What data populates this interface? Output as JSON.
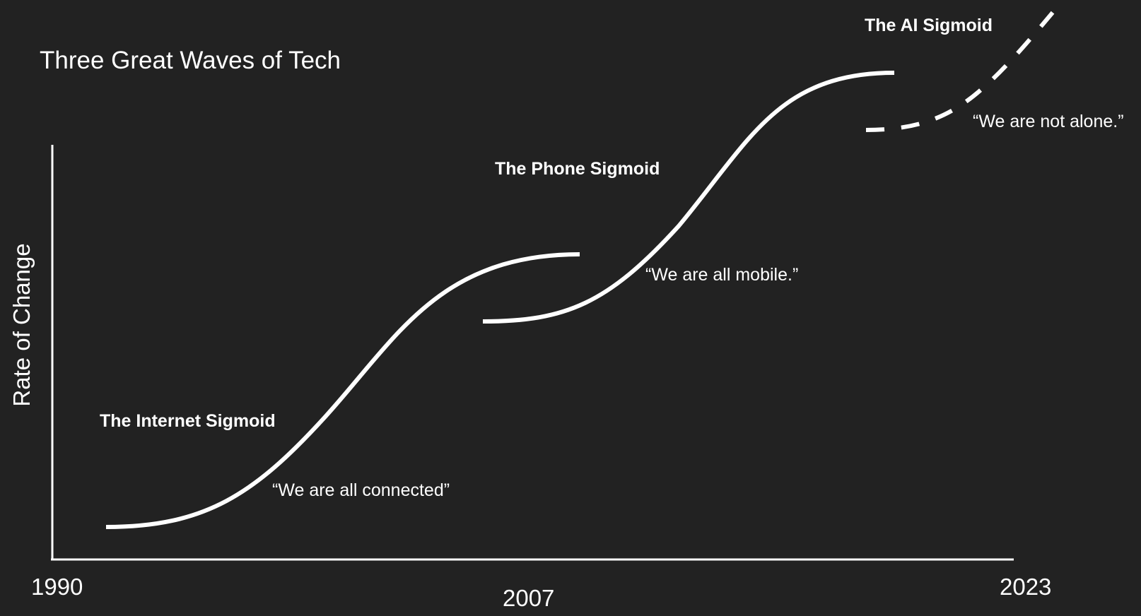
{
  "title": "Three Great Waves of Tech",
  "y_axis_label": "Rate of Change",
  "x_axis": {
    "ticks": [
      "1990",
      "2007",
      "2023"
    ]
  },
  "waves": [
    {
      "id": "internet",
      "label": "The Internet Sigmoid",
      "quote": "“We are all connected”",
      "style": "solid"
    },
    {
      "id": "phone",
      "label": "The Phone Sigmoid",
      "quote": "“We are all mobile.”",
      "style": "solid"
    },
    {
      "id": "ai",
      "label": "The AI Sigmoid",
      "quote": "“We are not alone.”",
      "style": "dashed"
    }
  ],
  "colors": {
    "background": "#222222",
    "foreground": "#ffffff"
  }
}
